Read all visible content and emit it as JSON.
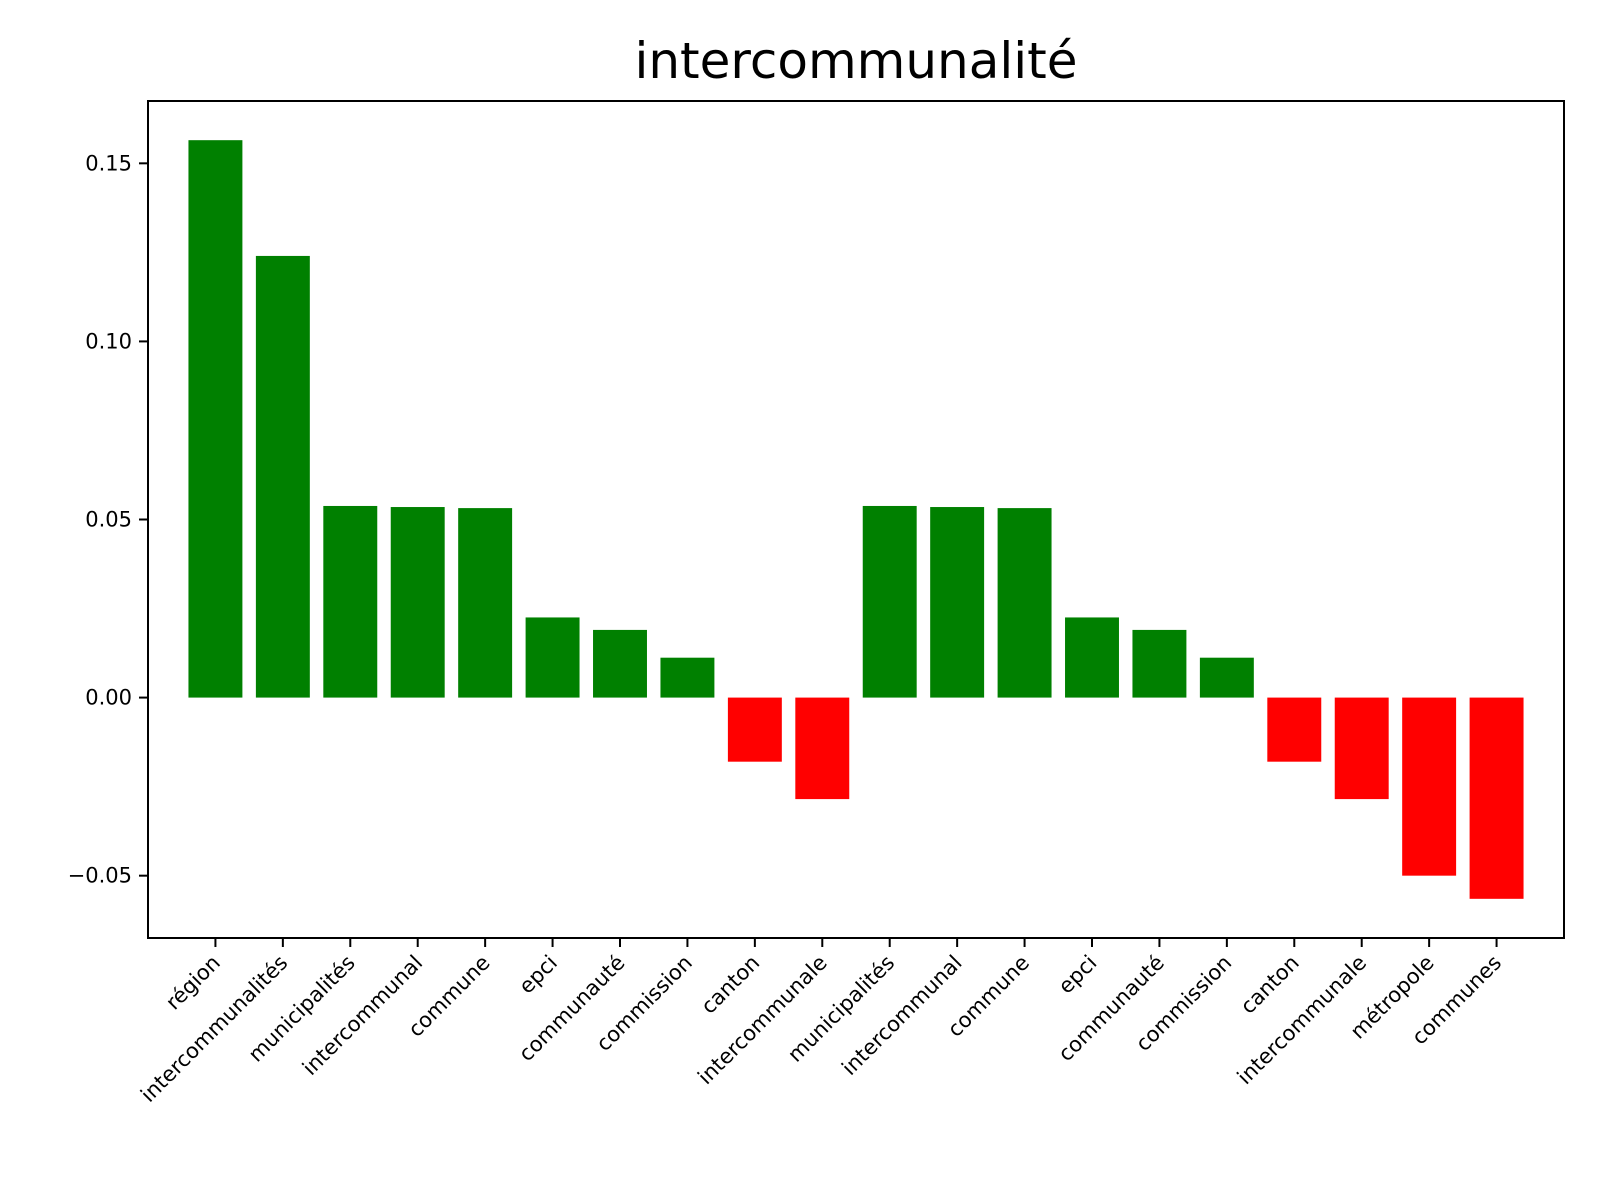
{
  "chart_data": {
    "type": "bar",
    "title": "intercommunalité",
    "xlabel": "",
    "ylabel": "",
    "ylim": [
      -0.0675,
      0.1675
    ],
    "yticks": [
      -0.05,
      0.0,
      0.05,
      0.1,
      0.15
    ],
    "ytick_labels": [
      "−0.05",
      "0.00",
      "0.05",
      "0.10",
      "0.15"
    ],
    "grid": false,
    "positive_color": "#008000",
    "negative_color": "#ff0000",
    "categories": [
      "région",
      "intercommunalités",
      "municipalités",
      "intercommunal",
      "commune",
      "epci",
      "communauté",
      "commission",
      "canton",
      "intercommunale",
      "municipalités",
      "intercommunal",
      "commune",
      "epci",
      "communauté",
      "commission",
      "canton",
      "intercommunale",
      "métropole",
      "communes"
    ],
    "values": [
      0.1565,
      0.124,
      0.0538,
      0.0535,
      0.0532,
      0.0225,
      0.019,
      0.0112,
      -0.018,
      -0.0285,
      0.0538,
      0.0535,
      0.0532,
      0.0225,
      0.019,
      0.0112,
      -0.018,
      -0.0285,
      -0.05,
      -0.0565
    ]
  }
}
